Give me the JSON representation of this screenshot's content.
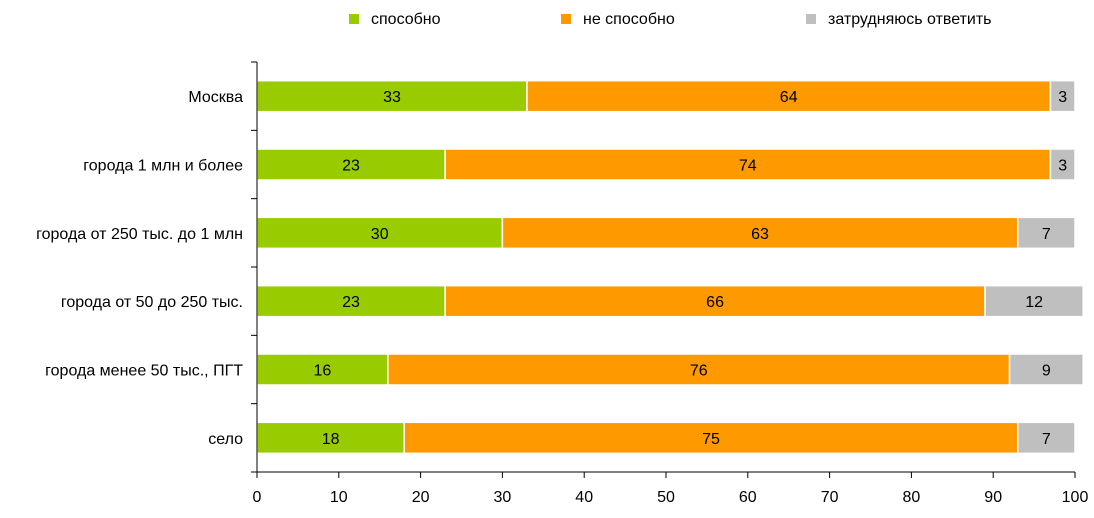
{
  "chart_data": {
    "type": "bar",
    "orientation": "horizontal",
    "stacked": true,
    "categories": [
      "Москва",
      "города 1 млн и более",
      "города от 250 тыс. до 1 млн",
      "города от 50 до 250 тыс.",
      "города менее 50 тыс., ПГТ",
      "село"
    ],
    "series": [
      {
        "name": "способно",
        "color": "#99cc00",
        "values": [
          33,
          23,
          30,
          23,
          16,
          18
        ]
      },
      {
        "name": "не способно",
        "color": "#ff9900",
        "values": [
          64,
          74,
          63,
          66,
          76,
          75
        ]
      },
      {
        "name": "затрудняюсь ответить",
        "color": "#bfbfbf",
        "values": [
          3,
          3,
          7,
          12,
          9,
          7
        ]
      }
    ],
    "xlim": [
      0,
      100
    ],
    "xticks": [
      0,
      10,
      20,
      30,
      40,
      50,
      60,
      70,
      80,
      90,
      100
    ],
    "grid": false,
    "legend_position": "top",
    "title": "",
    "xlabel": "",
    "ylabel": ""
  }
}
